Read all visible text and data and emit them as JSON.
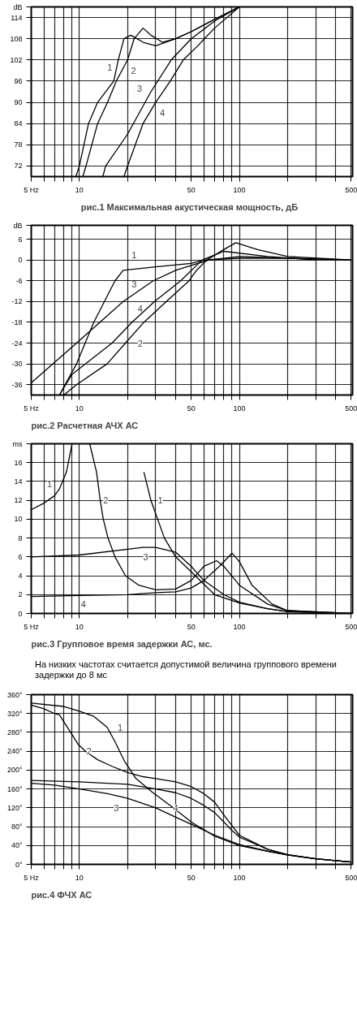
{
  "chart_data": [
    {
      "type": "line",
      "title": "рис.1  Максимальная акустическая мощность,  дБ",
      "log": "x",
      "grid": true,
      "xlim": [
        5,
        510
      ],
      "xticks": [
        {
          "value": 5,
          "label": "5 Hz"
        },
        {
          "value": 6,
          "label": null
        },
        {
          "value": 7,
          "label": null
        },
        {
          "value": 8,
          "label": null
        },
        {
          "value": 9,
          "label": null
        },
        10,
        {
          "value": 20,
          "label": null
        },
        {
          "value": 30,
          "label": null
        },
        {
          "value": 40,
          "label": null
        },
        50,
        {
          "value": 60,
          "label": null
        },
        {
          "value": 70,
          "label": null
        },
        {
          "value": 80,
          "label": null
        },
        {
          "value": 90,
          "label": null
        },
        100,
        {
          "value": 200,
          "label": null
        },
        {
          "value": 300,
          "label": null
        },
        {
          "value": 400,
          "label": null
        },
        500
      ],
      "ylim": [
        69,
        117
      ],
      "yticks": [
        72,
        78,
        84,
        90,
        96,
        102,
        108,
        114,
        {
          "value": 117,
          "label": "dB"
        }
      ],
      "series": [
        {
          "color": "#000000",
          "x": [
            9.5,
            10,
            11.4,
            13,
            16.4,
            17.5,
            19,
            21,
            25,
            30,
            40,
            50,
            70,
            100
          ],
          "values": [
            69,
            72,
            84,
            90,
            96,
            102,
            108,
            109,
            107,
            106,
            108,
            110,
            113.5,
            117
          ]
        },
        {
          "color": "#000000",
          "x": [
            10.5,
            11,
            13,
            15,
            17,
            20,
            22,
            25,
            28,
            33,
            40,
            50,
            70,
            100
          ],
          "values": [
            69,
            72,
            84,
            90,
            96,
            102,
            108,
            111,
            109,
            107,
            108,
            110,
            113.5,
            117
          ]
        },
        {
          "color": "#000000",
          "x": [
            14,
            14.6,
            20,
            28,
            37.5,
            50,
            70,
            100
          ],
          "values": [
            69,
            72,
            81,
            93,
            102,
            108,
            113,
            117
          ]
        },
        {
          "color": "#000000",
          "x": [
            19,
            20,
            25,
            30,
            37,
            44.6,
            55,
            70,
            100
          ],
          "values": [
            69,
            72,
            84,
            90,
            96,
            102,
            106,
            111,
            117
          ]
        }
      ],
      "annotations": [
        {
          "text": "1",
          "x": 15.5,
          "y": 100
        },
        {
          "text": "2",
          "x": 21.8,
          "y": 99
        },
        {
          "text": "3",
          "x": 23.8,
          "y": 94
        },
        {
          "text": "4",
          "x": 33,
          "y": 87
        }
      ]
    },
    {
      "type": "line",
      "title": "рис.2 Расчетная АЧХ АС",
      "log": "x",
      "grid": true,
      "xlim": [
        5,
        510
      ],
      "xticks": [
        {
          "value": 5,
          "label": "5 Hz"
        },
        {
          "value": 6,
          "label": null
        },
        {
          "value": 7,
          "label": null
        },
        {
          "value": 8,
          "label": null
        },
        {
          "value": 9,
          "label": null
        },
        10,
        {
          "value": 20,
          "label": null
        },
        {
          "value": 30,
          "label": null
        },
        {
          "value": 40,
          "label": null
        },
        50,
        {
          "value": 60,
          "label": null
        },
        {
          "value": 70,
          "label": null
        },
        {
          "value": 80,
          "label": null
        },
        {
          "value": 90,
          "label": null
        },
        100,
        {
          "value": 200,
          "label": null
        },
        {
          "value": 300,
          "label": null
        },
        {
          "value": 400,
          "label": null
        },
        500
      ],
      "ylim": [
        -39,
        10
      ],
      "yticks": [
        -36,
        -30,
        -24,
        -18,
        -12,
        -6,
        0,
        6,
        {
          "value": 10,
          "label": "dB"
        }
      ],
      "series": [
        {
          "color": "#000000",
          "x": [
            7.5,
            9.6,
            12.3,
            16.7,
            18.8,
            30,
            50,
            60,
            100,
            200,
            500
          ],
          "values": [
            -39,
            -30,
            -18,
            -6,
            -3,
            -2,
            -1,
            0,
            0.5,
            0.5,
            0
          ]
        },
        {
          "color": "#000000",
          "x": [
            8,
            9.6,
            14.9,
            19.4,
            25.3,
            35,
            48.5,
            54,
            62.6,
            80,
            95,
            130,
            200,
            500
          ],
          "values": [
            -39,
            -36,
            -30,
            -24,
            -18,
            -12,
            -6,
            -3,
            0,
            3,
            5,
            3,
            1,
            0
          ]
        },
        {
          "color": "#000000",
          "x": [
            5,
            9.6,
            18.8,
            29,
            40,
            55,
            65,
            100,
            200,
            500
          ],
          "values": [
            -35.5,
            -24,
            -12,
            -6,
            -3,
            -1,
            0,
            1,
            0.5,
            0
          ]
        },
        {
          "color": "#000000",
          "x": [
            7.5,
            9,
            16,
            21.3,
            29.5,
            43,
            58.6,
            80,
            150,
            300
          ],
          "values": [
            -39,
            -33,
            -24,
            -18,
            -12,
            -6,
            0,
            2.5,
            1,
            0
          ]
        }
      ],
      "annotations": [
        {
          "text": "1",
          "x": 22,
          "y": 1.5
        },
        {
          "text": "3",
          "x": 22,
          "y": -7
        },
        {
          "text": "4",
          "x": 24,
          "y": -14
        },
        {
          "text": "2",
          "x": 24,
          "y": -24
        }
      ]
    },
    {
      "type": "line",
      "title": "рис.3 Групповое время задержки АС, мс.",
      "log": "x",
      "grid": true,
      "xlim": [
        5,
        510
      ],
      "xticks": [
        {
          "value": 5,
          "label": "5 Hz"
        },
        {
          "value": 6,
          "label": null
        },
        {
          "value": 7,
          "label": null
        },
        {
          "value": 8,
          "label": null
        },
        {
          "value": 9,
          "label": null
        },
        10,
        {
          "value": 20,
          "label": null
        },
        {
          "value": 30,
          "label": null
        },
        {
          "value": 40,
          "label": null
        },
        50,
        {
          "value": 60,
          "label": null
        },
        {
          "value": 70,
          "label": null
        },
        {
          "value": 80,
          "label": null
        },
        {
          "value": 90,
          "label": null
        },
        100,
        {
          "value": 200,
          "label": null
        },
        {
          "value": 300,
          "label": null
        },
        {
          "value": 400,
          "label": null
        },
        500
      ],
      "ylim": [
        0,
        18
      ],
      "yticks": [
        0,
        2,
        4,
        6,
        8,
        10,
        12,
        14,
        16,
        {
          "value": 18,
          "label": "ms"
        }
      ],
      "series": [
        {
          "color": "#000000",
          "x": [
            5,
            6,
            7,
            7.5,
            8.3,
            9,
            24,
            25.3,
            28,
            34,
            40,
            53,
            70,
            100,
            150,
            200,
            500
          ],
          "values": [
            11,
            11.7,
            12.5,
            13.2,
            15,
            18,
            null,
            15,
            12,
            8,
            6,
            4,
            2,
            1.1,
            0.5,
            0.2,
            0
          ]
        },
        {
          "color": "#000000",
          "x": [
            11.6,
            12.8,
            13.5,
            14.1,
            15.1,
            16.7,
            19.4,
            23.5,
            30,
            40,
            50,
            60,
            72,
            80,
            100,
            150,
            200,
            500
          ],
          "values": [
            18,
            15,
            12,
            10,
            8,
            6,
            4,
            3,
            2.5,
            2.6,
            3.5,
            5,
            5.6,
            5,
            3,
            1,
            0.3,
            0
          ]
        },
        {
          "color": "#000000",
          "x": [
            5,
            10,
            25,
            30,
            40,
            50,
            60,
            80,
            100,
            150,
            200,
            500
          ],
          "values": [
            6,
            6.2,
            7,
            7,
            6.5,
            5,
            3.5,
            2,
            1.2,
            0.5,
            0.2,
            0
          ]
        },
        {
          "color": "#000000",
          "x": [
            5,
            10,
            20,
            30,
            40,
            50,
            60,
            75,
            90,
            100,
            120,
            160,
            200,
            500
          ],
          "values": [
            1.8,
            1.9,
            2,
            2.2,
            2.3,
            2.7,
            3.5,
            5,
            6.4,
            5.5,
            3,
            1,
            0.3,
            0
          ]
        }
      ],
      "annotations": [
        {
          "text": "1",
          "x": 6.5,
          "y": 13.7
        },
        {
          "text": "2",
          "x": 14.6,
          "y": 12
        },
        {
          "text": "1",
          "x": 32,
          "y": 12
        },
        {
          "text": "3",
          "x": 26,
          "y": 6
        },
        {
          "text": "4",
          "x": 10.6,
          "y": 1
        },
        "На низких частотах считается допустимой величина группового времени задержки до 8 мс"
      ]
    },
    {
      "type": "line",
      "title": "рис.4 ФЧХ АС",
      "log": "x",
      "grid": true,
      "xlim": [
        5,
        510
      ],
      "xticks": [
        {
          "value": 5,
          "label": "5 Hz"
        },
        {
          "value": 6,
          "label": null
        },
        {
          "value": 7,
          "label": null
        },
        {
          "value": 8,
          "label": null
        },
        {
          "value": 9,
          "label": null
        },
        10,
        {
          "value": 20,
          "label": null
        },
        {
          "value": 30,
          "label": null
        },
        {
          "value": 40,
          "label": null
        },
        50,
        {
          "value": 60,
          "label": null
        },
        {
          "value": 70,
          "label": null
        },
        {
          "value": 80,
          "label": null
        },
        {
          "value": 90,
          "label": null
        },
        100,
        {
          "value": 200,
          "label": null
        },
        {
          "value": 300,
          "label": null
        },
        {
          "value": 400,
          "label": null
        },
        500
      ],
      "ylim": [
        0,
        360
      ],
      "yticks": [
        {
          "value": 0,
          "label": "0°"
        },
        {
          "value": 40,
          "label": "40°"
        },
        {
          "value": 80,
          "label": "80°"
        },
        {
          "value": 120,
          "label": "120°"
        },
        {
          "value": 160,
          "label": "160°"
        },
        {
          "value": 200,
          "label": "200°"
        },
        {
          "value": 240,
          "label": "240°"
        },
        {
          "value": 280,
          "label": "280°"
        },
        {
          "value": 320,
          "label": "320°"
        },
        {
          "value": 360,
          "label": "360°"
        }
      ],
      "series": [
        {
          "color": "#000000",
          "x": [
            5,
            8,
            10,
            12.3,
            14.9,
            16.7,
            19.2,
            22.6,
            28.3,
            38.6,
            50.4,
            70,
            100,
            150,
            200,
            300,
            500
          ],
          "values": [
            342,
            335,
            325,
            314,
            291,
            260,
            218,
            182,
            154,
            120,
            89,
            60,
            40,
            28,
            20,
            12,
            5
          ]
        },
        {
          "color": "#000000",
          "x": [
            5,
            6,
            7,
            7.5,
            8.7,
            9.8,
            11,
            13,
            16,
            20,
            25,
            30,
            40,
            50,
            60,
            70,
            80,
            90,
            100,
            150,
            200,
            300,
            500
          ],
          "values": [
            338,
            330,
            320,
            317,
            283,
            255,
            239,
            222,
            208,
            195,
            186,
            182,
            175,
            165,
            150,
            132,
            105,
            82,
            62,
            32,
            20,
            12,
            5
          ]
        },
        {
          "color": "#000000",
          "x": [
            5,
            7,
            10,
            15,
            20,
            30,
            40,
            50,
            70,
            100,
            150,
            200,
            300,
            500
          ],
          "values": [
            172,
            168,
            160,
            150,
            140,
            120,
            100,
            85,
            62,
            42,
            28,
            20,
            12,
            5
          ]
        },
        {
          "color": "#000000",
          "x": [
            5,
            10,
            20,
            30,
            40,
            50,
            60,
            70,
            80,
            90,
            100,
            150,
            200,
            300,
            500
          ],
          "values": [
            178,
            175,
            170,
            160,
            152,
            140,
            125,
            110,
            90,
            72,
            58,
            32,
            21,
            12,
            5
          ]
        }
      ],
      "annotations": [
        {
          "text": "1",
          "x": 18,
          "y": 290
        },
        {
          "text": "2",
          "x": 11.5,
          "y": 240
        },
        {
          "text": "3",
          "x": 17,
          "y": 120
        },
        {
          "text": "4",
          "x": 40,
          "y": 120
        }
      ]
    }
  ]
}
